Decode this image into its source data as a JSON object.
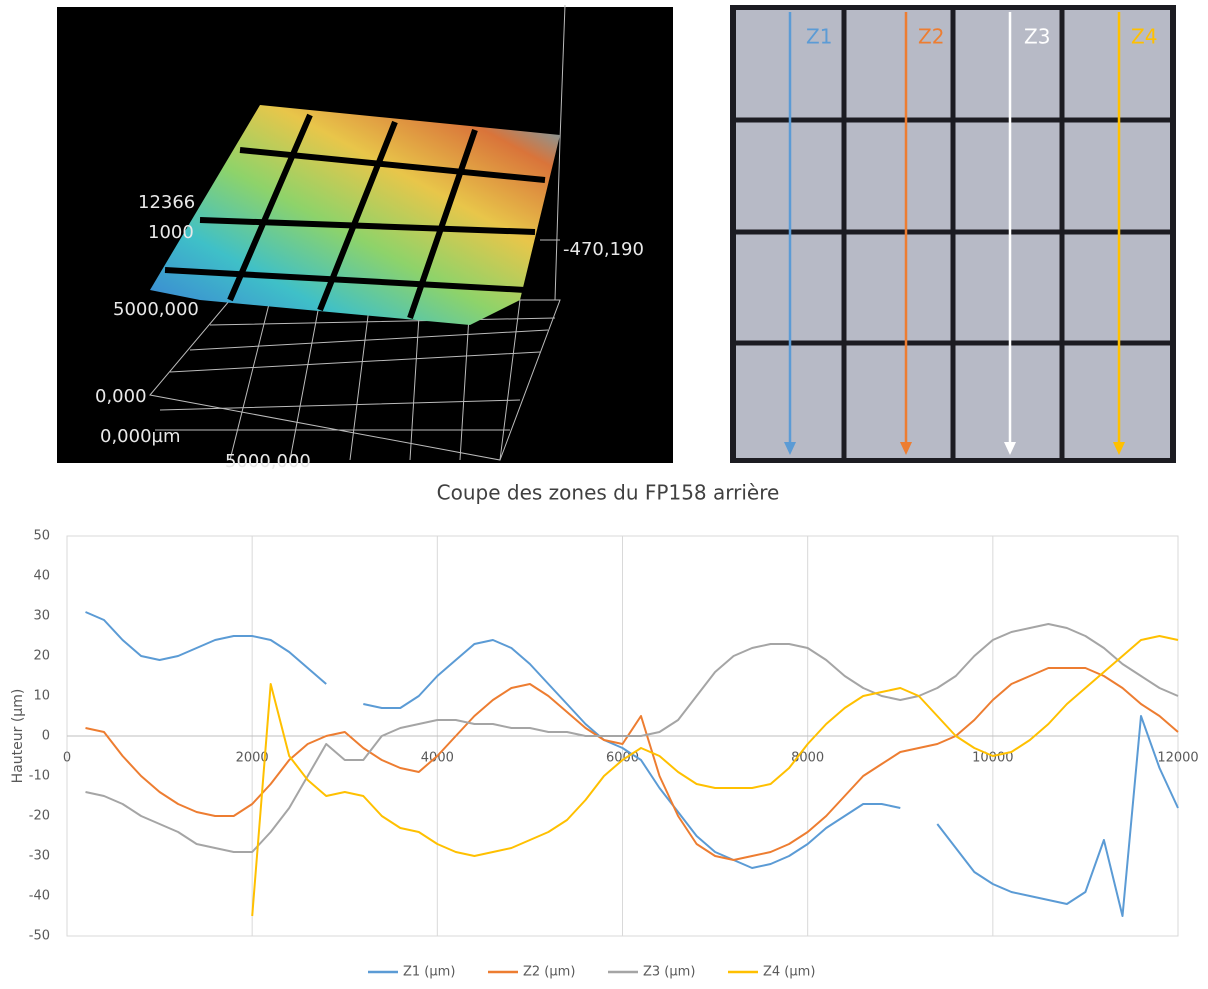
{
  "images": {
    "surface": {
      "labels": [
        "12366",
        "1000",
        "-470,190",
        "5000,000",
        "0,000",
        "0,000µm",
        "5000,000"
      ]
    },
    "photo": {
      "zones": [
        "Z1",
        "Z2",
        "Z3",
        "Z4"
      ]
    }
  },
  "chart_data": {
    "type": "line",
    "title": "Coupe des zones du FP158 arrière",
    "y_label": "Hauteur (µm)",
    "x": [
      200,
      400,
      600,
      800,
      1000,
      1200,
      1400,
      1600,
      1800,
      2000,
      2200,
      2400,
      2600,
      2800,
      3000,
      3200,
      3400,
      3600,
      3800,
      4000,
      4200,
      4400,
      4600,
      4800,
      5000,
      5200,
      5400,
      5600,
      5800,
      6000,
      6200,
      6400,
      6600,
      6800,
      7000,
      7200,
      7400,
      7600,
      7800,
      8000,
      8200,
      8400,
      8600,
      8800,
      9000,
      9200,
      9400,
      9600,
      9800,
      10000,
      10200,
      10400,
      10600,
      10800,
      11000,
      11200,
      11400,
      11600,
      11800,
      12000
    ],
    "series": [
      {
        "name": "Z1 (µm)",
        "color": "#5b9bd5",
        "values": [
          31,
          29,
          24,
          20,
          19,
          20,
          22,
          24,
          25,
          25,
          24,
          21,
          17,
          13,
          null,
          8,
          7,
          7,
          10,
          15,
          19,
          23,
          24,
          22,
          18,
          13,
          8,
          3,
          -1,
          -3,
          -6,
          -13,
          -19,
          -25,
          -29,
          -31,
          -33,
          -32,
          -30,
          -27,
          -23,
          -20,
          -17,
          -17,
          -18,
          null,
          -22,
          -28,
          -34,
          -37,
          -39,
          -40,
          -41,
          -42,
          -39,
          -26,
          -45,
          5,
          -8,
          -18
        ]
      },
      {
        "name": "Z2 (µm)",
        "color": "#ed7d31",
        "values": [
          2,
          1,
          -5,
          -10,
          -14,
          -17,
          -19,
          -20,
          -20,
          -17,
          -12,
          -6,
          -2,
          0,
          1,
          -3,
          -6,
          -8,
          -9,
          -5,
          0,
          5,
          9,
          12,
          13,
          10,
          6,
          2,
          -1,
          -2,
          5,
          -10,
          -20,
          -27,
          -30,
          -31,
          -30,
          -29,
          -27,
          -24,
          -20,
          -15,
          -10,
          -7,
          -4,
          -3,
          -2,
          0,
          4,
          9,
          13,
          15,
          17,
          17,
          17,
          15,
          12,
          8,
          5,
          1
        ]
      },
      {
        "name": "Z3 (µm)",
        "color": "#a5a5a5",
        "values": [
          -14,
          -15,
          -17,
          -20,
          -22,
          -24,
          -27,
          -28,
          -29,
          -29,
          -24,
          -18,
          -10,
          -2,
          -6,
          -6,
          0,
          2,
          3,
          4,
          4,
          3,
          3,
          2,
          2,
          1,
          1,
          0,
          0,
          0,
          0,
          1,
          4,
          10,
          16,
          20,
          22,
          23,
          23,
          22,
          19,
          15,
          12,
          10,
          9,
          10,
          12,
          15,
          20,
          24,
          26,
          27,
          28,
          27,
          25,
          22,
          18,
          15,
          12,
          10
        ]
      },
      {
        "name": "Z4 (µm)",
        "color": "#ffc000",
        "values": [
          null,
          null,
          null,
          null,
          null,
          null,
          null,
          null,
          null,
          -45,
          13,
          -5,
          -11,
          -15,
          -14,
          -15,
          -20,
          -23,
          -24,
          -27,
          -29,
          -30,
          -29,
          -28,
          -26,
          -24,
          -21,
          -16,
          -10,
          -6,
          -3,
          -5,
          -9,
          -12,
          -13,
          -13,
          -13,
          -12,
          -8,
          -2,
          3,
          7,
          10,
          11,
          12,
          10,
          5,
          0,
          -3,
          -5,
          -4,
          -1,
          3,
          8,
          12,
          16,
          20,
          24,
          25,
          24
        ]
      }
    ],
    "xlim": [
      0,
      12000
    ],
    "xticks": [
      0,
      2000,
      4000,
      6000,
      8000,
      10000,
      12000
    ],
    "ylim": [
      -50,
      50
    ],
    "yticks": [
      -50,
      -40,
      -30,
      -20,
      -10,
      0,
      10,
      20,
      30,
      40,
      50
    ],
    "grid": "x",
    "legend": "bottom"
  }
}
